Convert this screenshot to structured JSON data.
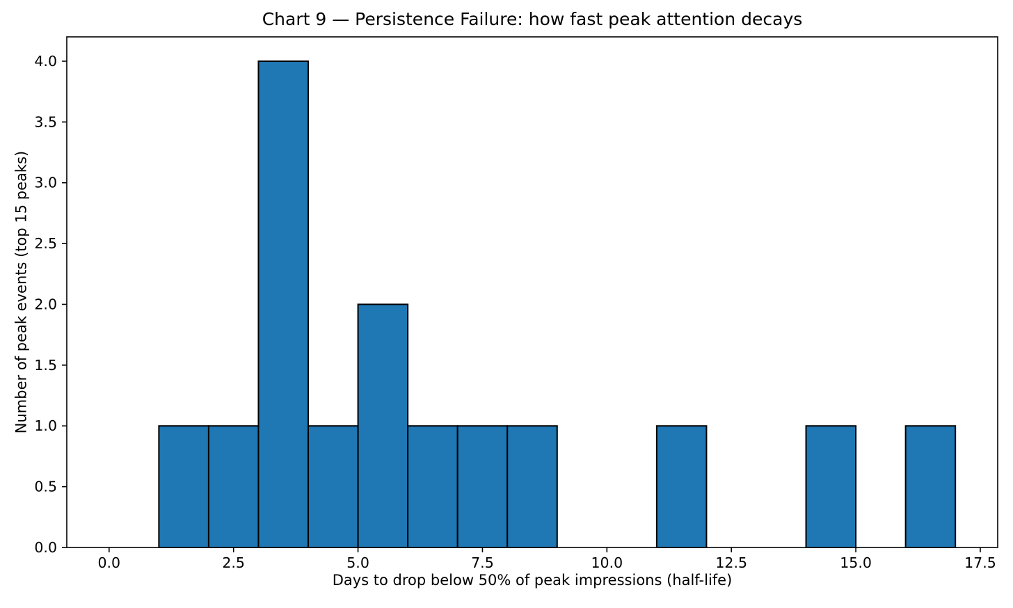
{
  "chart_data": {
    "type": "bar",
    "subtype": "histogram",
    "title": "Chart 9 — Persistence Failure: how fast peak attention decays",
    "xlabel": "Days to drop below 50% of peak impressions (half-life)",
    "ylabel": "Number of peak events (top 15 peaks)",
    "bin_edges": [
      0,
      1,
      2,
      3,
      4,
      5,
      6,
      7,
      8,
      9,
      10,
      11,
      12,
      13,
      14,
      15,
      16,
      17
    ],
    "counts": [
      0,
      1,
      1,
      4,
      1,
      2,
      1,
      1,
      1,
      0,
      0,
      1,
      0,
      0,
      1,
      0,
      1
    ],
    "total_events": 15,
    "xticks": [
      0.0,
      2.5,
      5.0,
      7.5,
      10.0,
      12.5,
      15.0,
      17.5
    ],
    "xtick_labels": [
      "0.0",
      "2.5",
      "5.0",
      "7.5",
      "10.0",
      "12.5",
      "15.0",
      "17.5"
    ],
    "yticks": [
      0.0,
      0.5,
      1.0,
      1.5,
      2.0,
      2.5,
      3.0,
      3.5,
      4.0
    ],
    "ytick_labels": [
      "0.0",
      "0.5",
      "1.0",
      "1.5",
      "2.0",
      "2.5",
      "3.0",
      "3.5",
      "4.0"
    ],
    "xlim": [
      -0.85,
      17.85
    ],
    "ylim": [
      0,
      4.2
    ],
    "grid": false,
    "legend": "none",
    "bar_color": "#1f77b4",
    "bar_edge_color": "#000000",
    "axis_color": "#000000",
    "background_color": "#ffffff"
  }
}
